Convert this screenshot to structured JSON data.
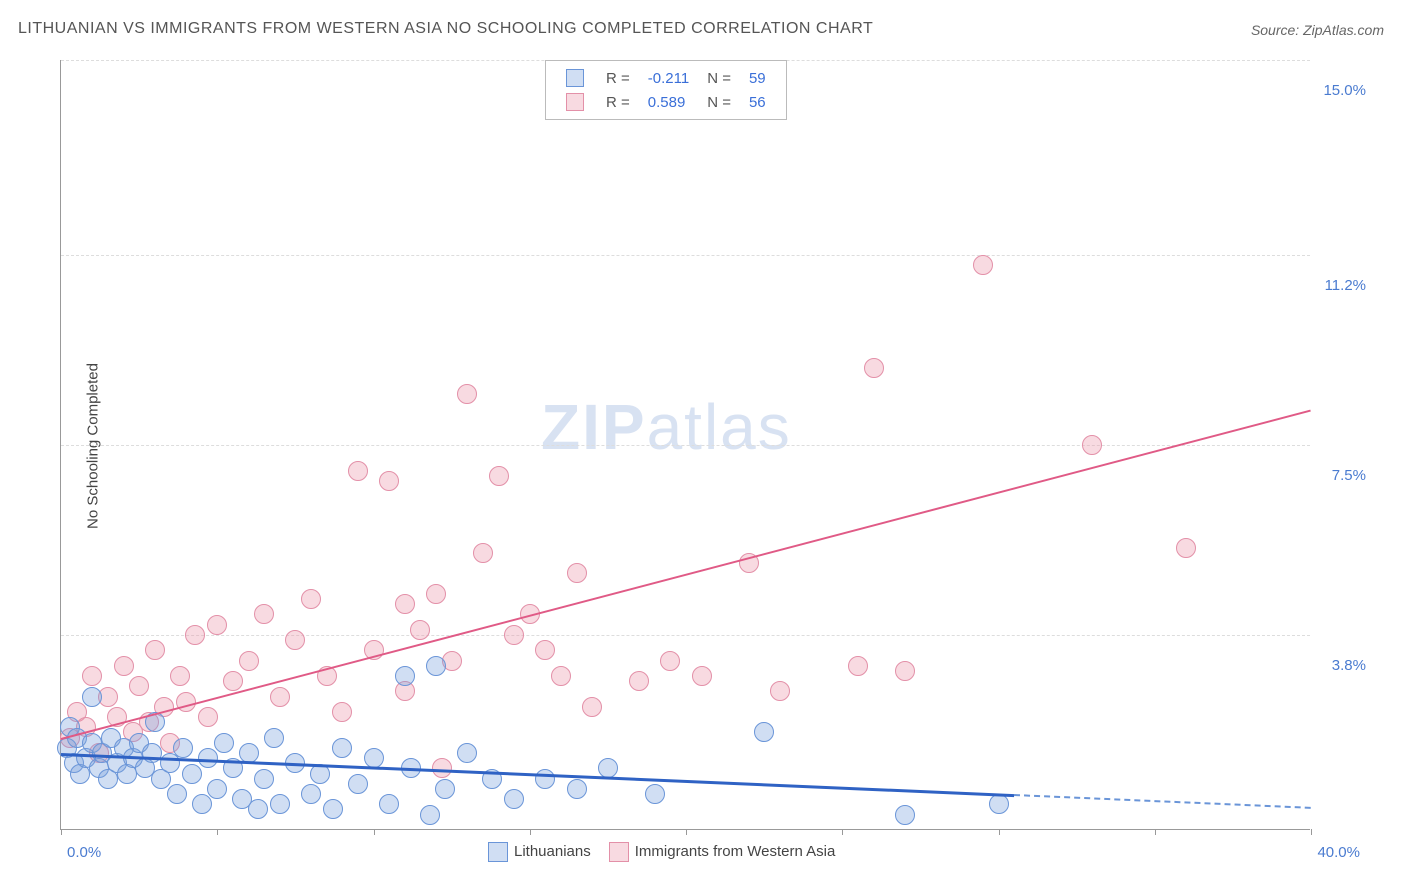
{
  "title": "LITHUANIAN VS IMMIGRANTS FROM WESTERN ASIA NO SCHOOLING COMPLETED CORRELATION CHART",
  "source": "Source: ZipAtlas.com",
  "y_axis_label": "No Schooling Completed",
  "watermark": {
    "zip": "ZIP",
    "atlas": "atlas"
  },
  "chart": {
    "type": "scatter",
    "xlim": [
      0,
      40
    ],
    "ylim": [
      0,
      15
    ],
    "x_ticks": [
      0,
      5,
      10,
      15,
      20,
      25,
      30,
      35,
      40
    ],
    "x_tick_labels": {
      "0": "0.0%",
      "40": "40.0%"
    },
    "y_gridlines": [
      3.8,
      7.5,
      11.2,
      15.0
    ],
    "y_tick_labels": [
      "3.8%",
      "7.5%",
      "11.2%",
      "15.0%"
    ],
    "background_color": "#ffffff",
    "grid_color": "#dddddd",
    "axis_color": "#999999",
    "tick_label_color": "#4a7bd0",
    "series": [
      {
        "name": "Lithuanians",
        "color_fill": "rgba(120,160,220,0.35)",
        "color_stroke": "#6a95d8",
        "marker_radius": 10,
        "R": "-0.211",
        "N": "59",
        "trend": {
          "x1": 0,
          "y1": 1.5,
          "x2": 30.5,
          "y2": 0.7,
          "color": "#2f62c4",
          "width": 3,
          "dash": false
        },
        "trend_ext": {
          "x1": 30.5,
          "y1": 0.7,
          "x2": 40,
          "y2": 0.45,
          "color": "#6a95d8",
          "width": 2,
          "dash": true
        },
        "points": [
          [
            0.2,
            1.6
          ],
          [
            0.3,
            2.0
          ],
          [
            0.4,
            1.3
          ],
          [
            0.5,
            1.8
          ],
          [
            0.6,
            1.1
          ],
          [
            0.8,
            1.4
          ],
          [
            1.0,
            1.7
          ],
          [
            1.0,
            2.6
          ],
          [
            1.2,
            1.2
          ],
          [
            1.3,
            1.5
          ],
          [
            1.5,
            1.0
          ],
          [
            1.6,
            1.8
          ],
          [
            1.8,
            1.3
          ],
          [
            2.0,
            1.6
          ],
          [
            2.1,
            1.1
          ],
          [
            2.3,
            1.4
          ],
          [
            2.5,
            1.7
          ],
          [
            2.7,
            1.2
          ],
          [
            2.9,
            1.5
          ],
          [
            3.0,
            2.1
          ],
          [
            3.2,
            1.0
          ],
          [
            3.5,
            1.3
          ],
          [
            3.7,
            0.7
          ],
          [
            3.9,
            1.6
          ],
          [
            4.2,
            1.1
          ],
          [
            4.5,
            0.5
          ],
          [
            4.7,
            1.4
          ],
          [
            5.0,
            0.8
          ],
          [
            5.2,
            1.7
          ],
          [
            5.5,
            1.2
          ],
          [
            5.8,
            0.6
          ],
          [
            6.0,
            1.5
          ],
          [
            6.3,
            0.4
          ],
          [
            6.5,
            1.0
          ],
          [
            6.8,
            1.8
          ],
          [
            7.0,
            0.5
          ],
          [
            7.5,
            1.3
          ],
          [
            8.0,
            0.7
          ],
          [
            8.3,
            1.1
          ],
          [
            8.7,
            0.4
          ],
          [
            9.0,
            1.6
          ],
          [
            9.5,
            0.9
          ],
          [
            10.0,
            1.4
          ],
          [
            10.5,
            0.5
          ],
          [
            11.0,
            3.0
          ],
          [
            11.2,
            1.2
          ],
          [
            11.8,
            0.3
          ],
          [
            12.0,
            3.2
          ],
          [
            12.3,
            0.8
          ],
          [
            13.0,
            1.5
          ],
          [
            13.8,
            1.0
          ],
          [
            14.5,
            0.6
          ],
          [
            15.5,
            1.0
          ],
          [
            16.5,
            0.8
          ],
          [
            17.5,
            1.2
          ],
          [
            19.0,
            0.7
          ],
          [
            22.5,
            1.9
          ],
          [
            27.0,
            0.3
          ],
          [
            30.0,
            0.5
          ]
        ]
      },
      {
        "name": "Immigrants from Western Asia",
        "color_fill": "rgba(235,150,170,0.35)",
        "color_stroke": "#e390a8",
        "marker_radius": 10,
        "R": "0.589",
        "N": "56",
        "trend": {
          "x1": 0,
          "y1": 1.8,
          "x2": 40,
          "y2": 8.2,
          "color": "#e05a86",
          "width": 2,
          "dash": false
        },
        "points": [
          [
            0.3,
            1.8
          ],
          [
            0.5,
            2.3
          ],
          [
            0.8,
            2.0
          ],
          [
            1.0,
            3.0
          ],
          [
            1.2,
            1.5
          ],
          [
            1.5,
            2.6
          ],
          [
            1.8,
            2.2
          ],
          [
            2.0,
            3.2
          ],
          [
            2.3,
            1.9
          ],
          [
            2.5,
            2.8
          ],
          [
            2.8,
            2.1
          ],
          [
            3.0,
            3.5
          ],
          [
            3.3,
            2.4
          ],
          [
            3.5,
            1.7
          ],
          [
            3.8,
            3.0
          ],
          [
            4.0,
            2.5
          ],
          [
            4.3,
            3.8
          ],
          [
            4.7,
            2.2
          ],
          [
            5.0,
            4.0
          ],
          [
            5.5,
            2.9
          ],
          [
            6.0,
            3.3
          ],
          [
            6.5,
            4.2
          ],
          [
            7.0,
            2.6
          ],
          [
            7.5,
            3.7
          ],
          [
            8.0,
            4.5
          ],
          [
            8.5,
            3.0
          ],
          [
            9.0,
            2.3
          ],
          [
            9.5,
            7.0
          ],
          [
            10.0,
            3.5
          ],
          [
            10.5,
            6.8
          ],
          [
            11.0,
            4.4
          ],
          [
            11.0,
            2.7
          ],
          [
            11.5,
            3.9
          ],
          [
            12.0,
            4.6
          ],
          [
            12.2,
            1.2
          ],
          [
            12.5,
            3.3
          ],
          [
            13.0,
            8.5
          ],
          [
            13.5,
            5.4
          ],
          [
            14.0,
            6.9
          ],
          [
            14.5,
            3.8
          ],
          [
            15.0,
            4.2
          ],
          [
            15.5,
            3.5
          ],
          [
            16.0,
            3.0
          ],
          [
            16.5,
            5.0
          ],
          [
            17.0,
            2.4
          ],
          [
            18.5,
            2.9
          ],
          [
            19.5,
            3.3
          ],
          [
            20.5,
            3.0
          ],
          [
            22.0,
            5.2
          ],
          [
            23.0,
            2.7
          ],
          [
            25.5,
            3.2
          ],
          [
            26.0,
            9.0
          ],
          [
            27.0,
            3.1
          ],
          [
            29.5,
            11.0
          ],
          [
            33.0,
            7.5
          ],
          [
            36.0,
            5.5
          ]
        ]
      }
    ]
  },
  "legend_top": {
    "r_label": "R =",
    "n_label": "N =",
    "value_color": "#3a6fd8"
  },
  "legend_bottom": {
    "items": [
      "Lithuanians",
      "Immigrants from Western Asia"
    ]
  }
}
